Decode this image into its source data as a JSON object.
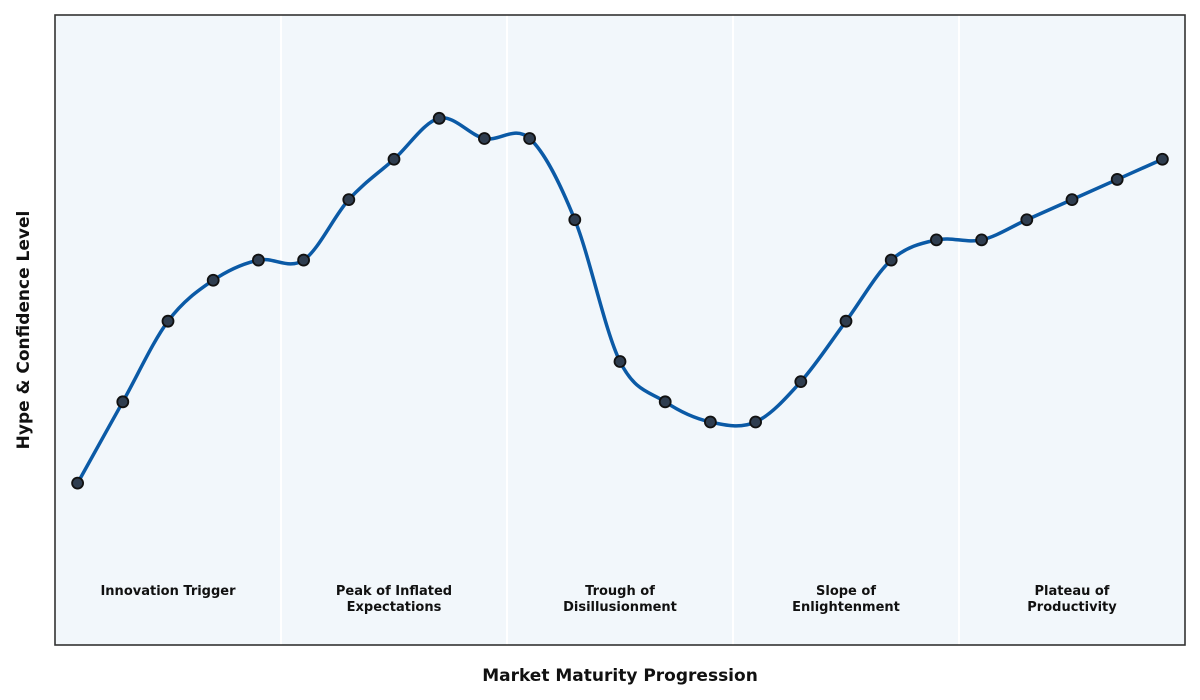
{
  "chart_data": {
    "type": "line",
    "title": "",
    "xlabel": "Market Maturity Progression",
    "ylabel": "Hype & Confidence Level",
    "xlim": [
      0,
      100
    ],
    "ylim": [
      0,
      100
    ],
    "grid": false,
    "x_ticks_shown": false,
    "y_ticks_shown": false,
    "phases": [
      {
        "label": "Innovation Trigger",
        "x_start": 0,
        "x_end": 20
      },
      {
        "label": "Peak of Inflated\nExpectations",
        "x_start": 20,
        "x_end": 40
      },
      {
        "label": "Trough of\nDisillusionment",
        "x_start": 40,
        "x_end": 60
      },
      {
        "label": "Slope of\nEnlightenment",
        "x_start": 60,
        "x_end": 80
      },
      {
        "label": "Plateau of\nProductivity",
        "x_start": 80,
        "x_end": 100
      }
    ],
    "series": [
      {
        "points": [
          {
            "x": 2,
            "y": 25.7
          },
          {
            "x": 6,
            "y": 38.6
          },
          {
            "x": 10,
            "y": 51.4
          },
          {
            "x": 14,
            "y": 57.9
          },
          {
            "x": 18,
            "y": 61.1
          },
          {
            "x": 22,
            "y": 61.1
          },
          {
            "x": 26,
            "y": 70.7
          },
          {
            "x": 30,
            "y": 77.1
          },
          {
            "x": 34,
            "y": 83.6
          },
          {
            "x": 38,
            "y": 80.4
          },
          {
            "x": 42,
            "y": 80.4
          },
          {
            "x": 46,
            "y": 67.5
          },
          {
            "x": 50,
            "y": 45.0
          },
          {
            "x": 54,
            "y": 38.6
          },
          {
            "x": 58,
            "y": 35.4
          },
          {
            "x": 62,
            "y": 35.4
          },
          {
            "x": 66,
            "y": 41.8
          },
          {
            "x": 70,
            "y": 51.4
          },
          {
            "x": 74,
            "y": 61.1
          },
          {
            "x": 78,
            "y": 64.3
          },
          {
            "x": 82,
            "y": 64.3
          },
          {
            "x": 86,
            "y": 67.5
          },
          {
            "x": 90,
            "y": 70.7
          },
          {
            "x": 94,
            "y": 73.9
          },
          {
            "x": 98,
            "y": 77.1
          }
        ]
      }
    ],
    "colors": {
      "line": "#0b5aa6",
      "marker_fill": "#2f3d4f",
      "marker_edge": "#111111",
      "plot_background": "#f2f7fb",
      "phase_divider": "#ffffff",
      "frame": "#333333"
    }
  }
}
